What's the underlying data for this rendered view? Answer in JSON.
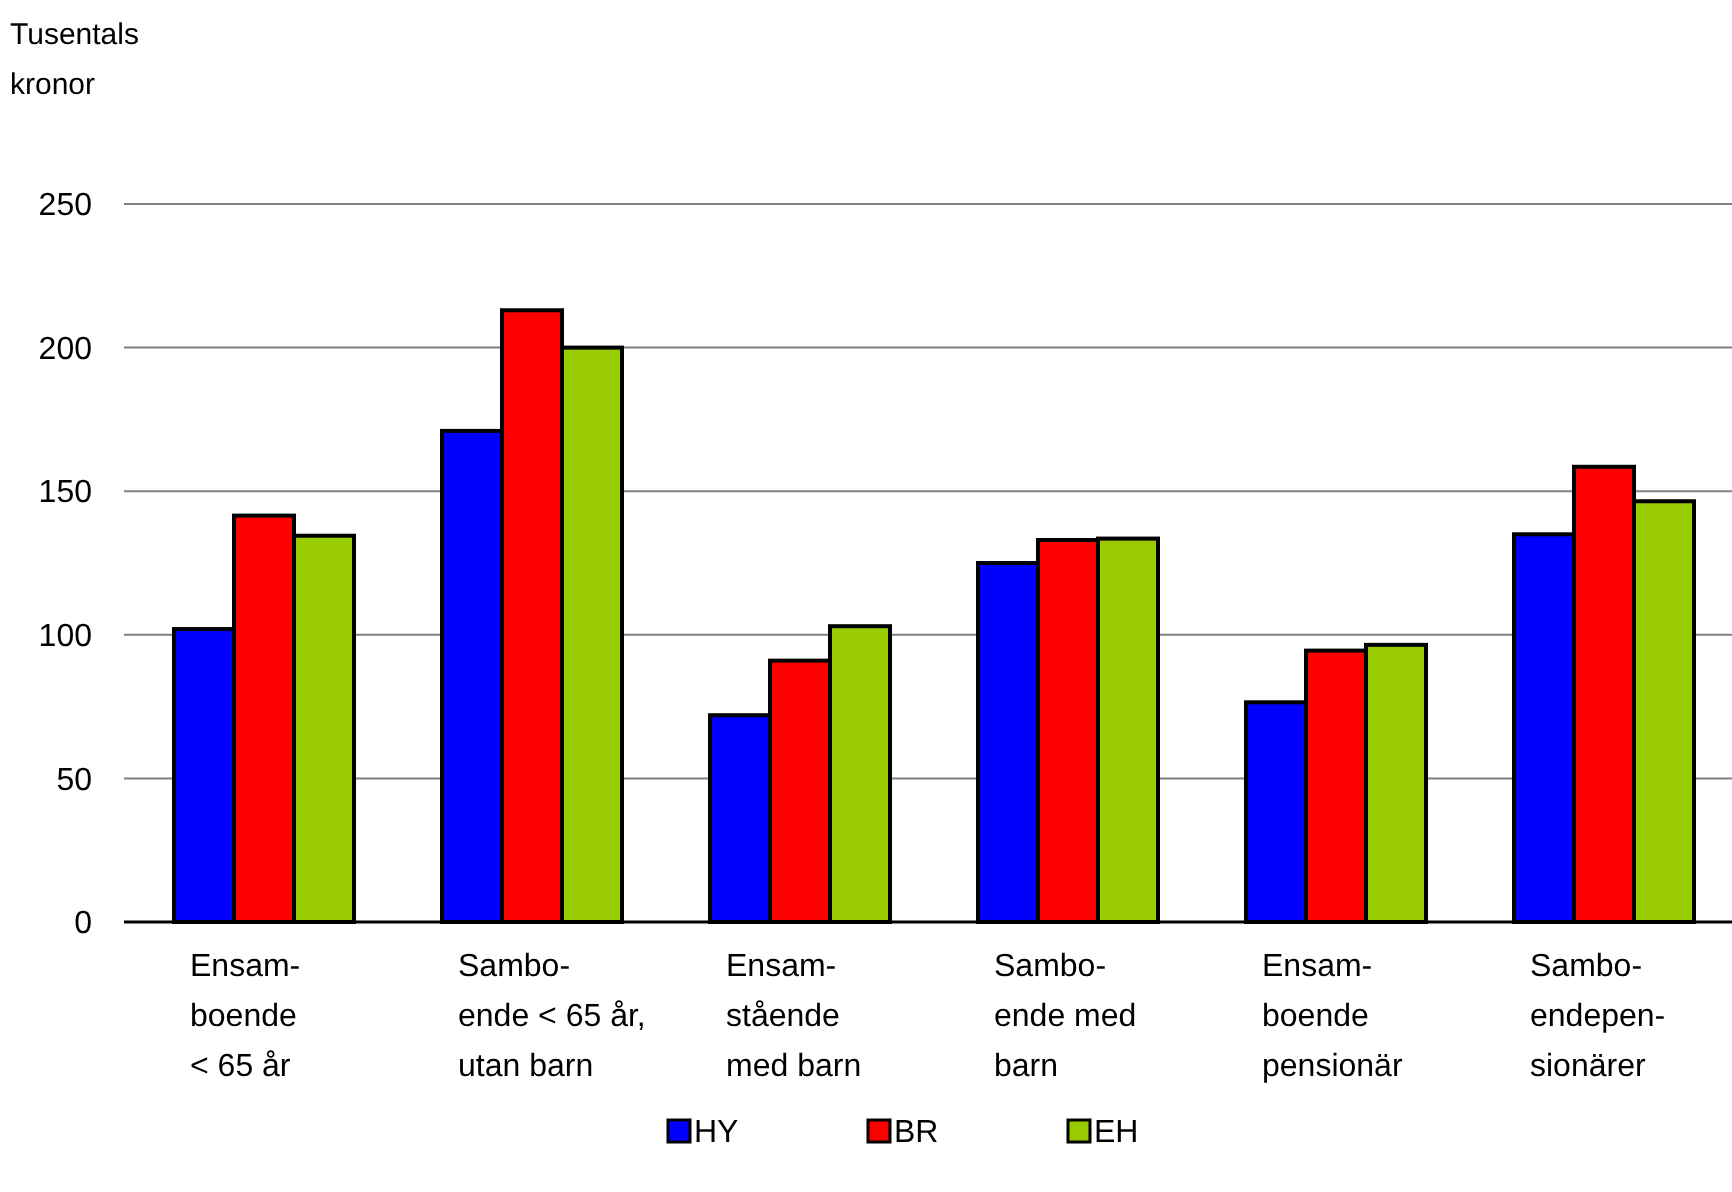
{
  "chart_data": {
    "type": "bar",
    "ylabel": "Tusentals\nkronor",
    "categories": [
      "Ensam-\nboende\n< 65 år",
      "Sambo-\nende < 65 år,\nutan barn",
      "Ensam-\nstående\nmed barn",
      "Sambo-\nende med\nbarn",
      "Ensam-\nboende\npensionär",
      "Sambo-\nendepen-\nsionärer"
    ],
    "series": [
      {
        "name": "HY",
        "color": "#0000ff",
        "values": [
          102,
          171,
          72,
          125,
          76.5,
          135
        ]
      },
      {
        "name": "BR",
        "color": "#ff0000",
        "values": [
          141.5,
          213,
          91,
          133,
          94.5,
          158.5
        ]
      },
      {
        "name": "EH",
        "color": "#99cc00",
        "values": [
          134.5,
          200,
          103,
          133.5,
          96.5,
          146.5
        ]
      }
    ],
    "ylim": [
      0,
      250
    ],
    "yticks": [
      0,
      50,
      100,
      150,
      200,
      250
    ],
    "grid": "y",
    "legend": "bottom"
  }
}
